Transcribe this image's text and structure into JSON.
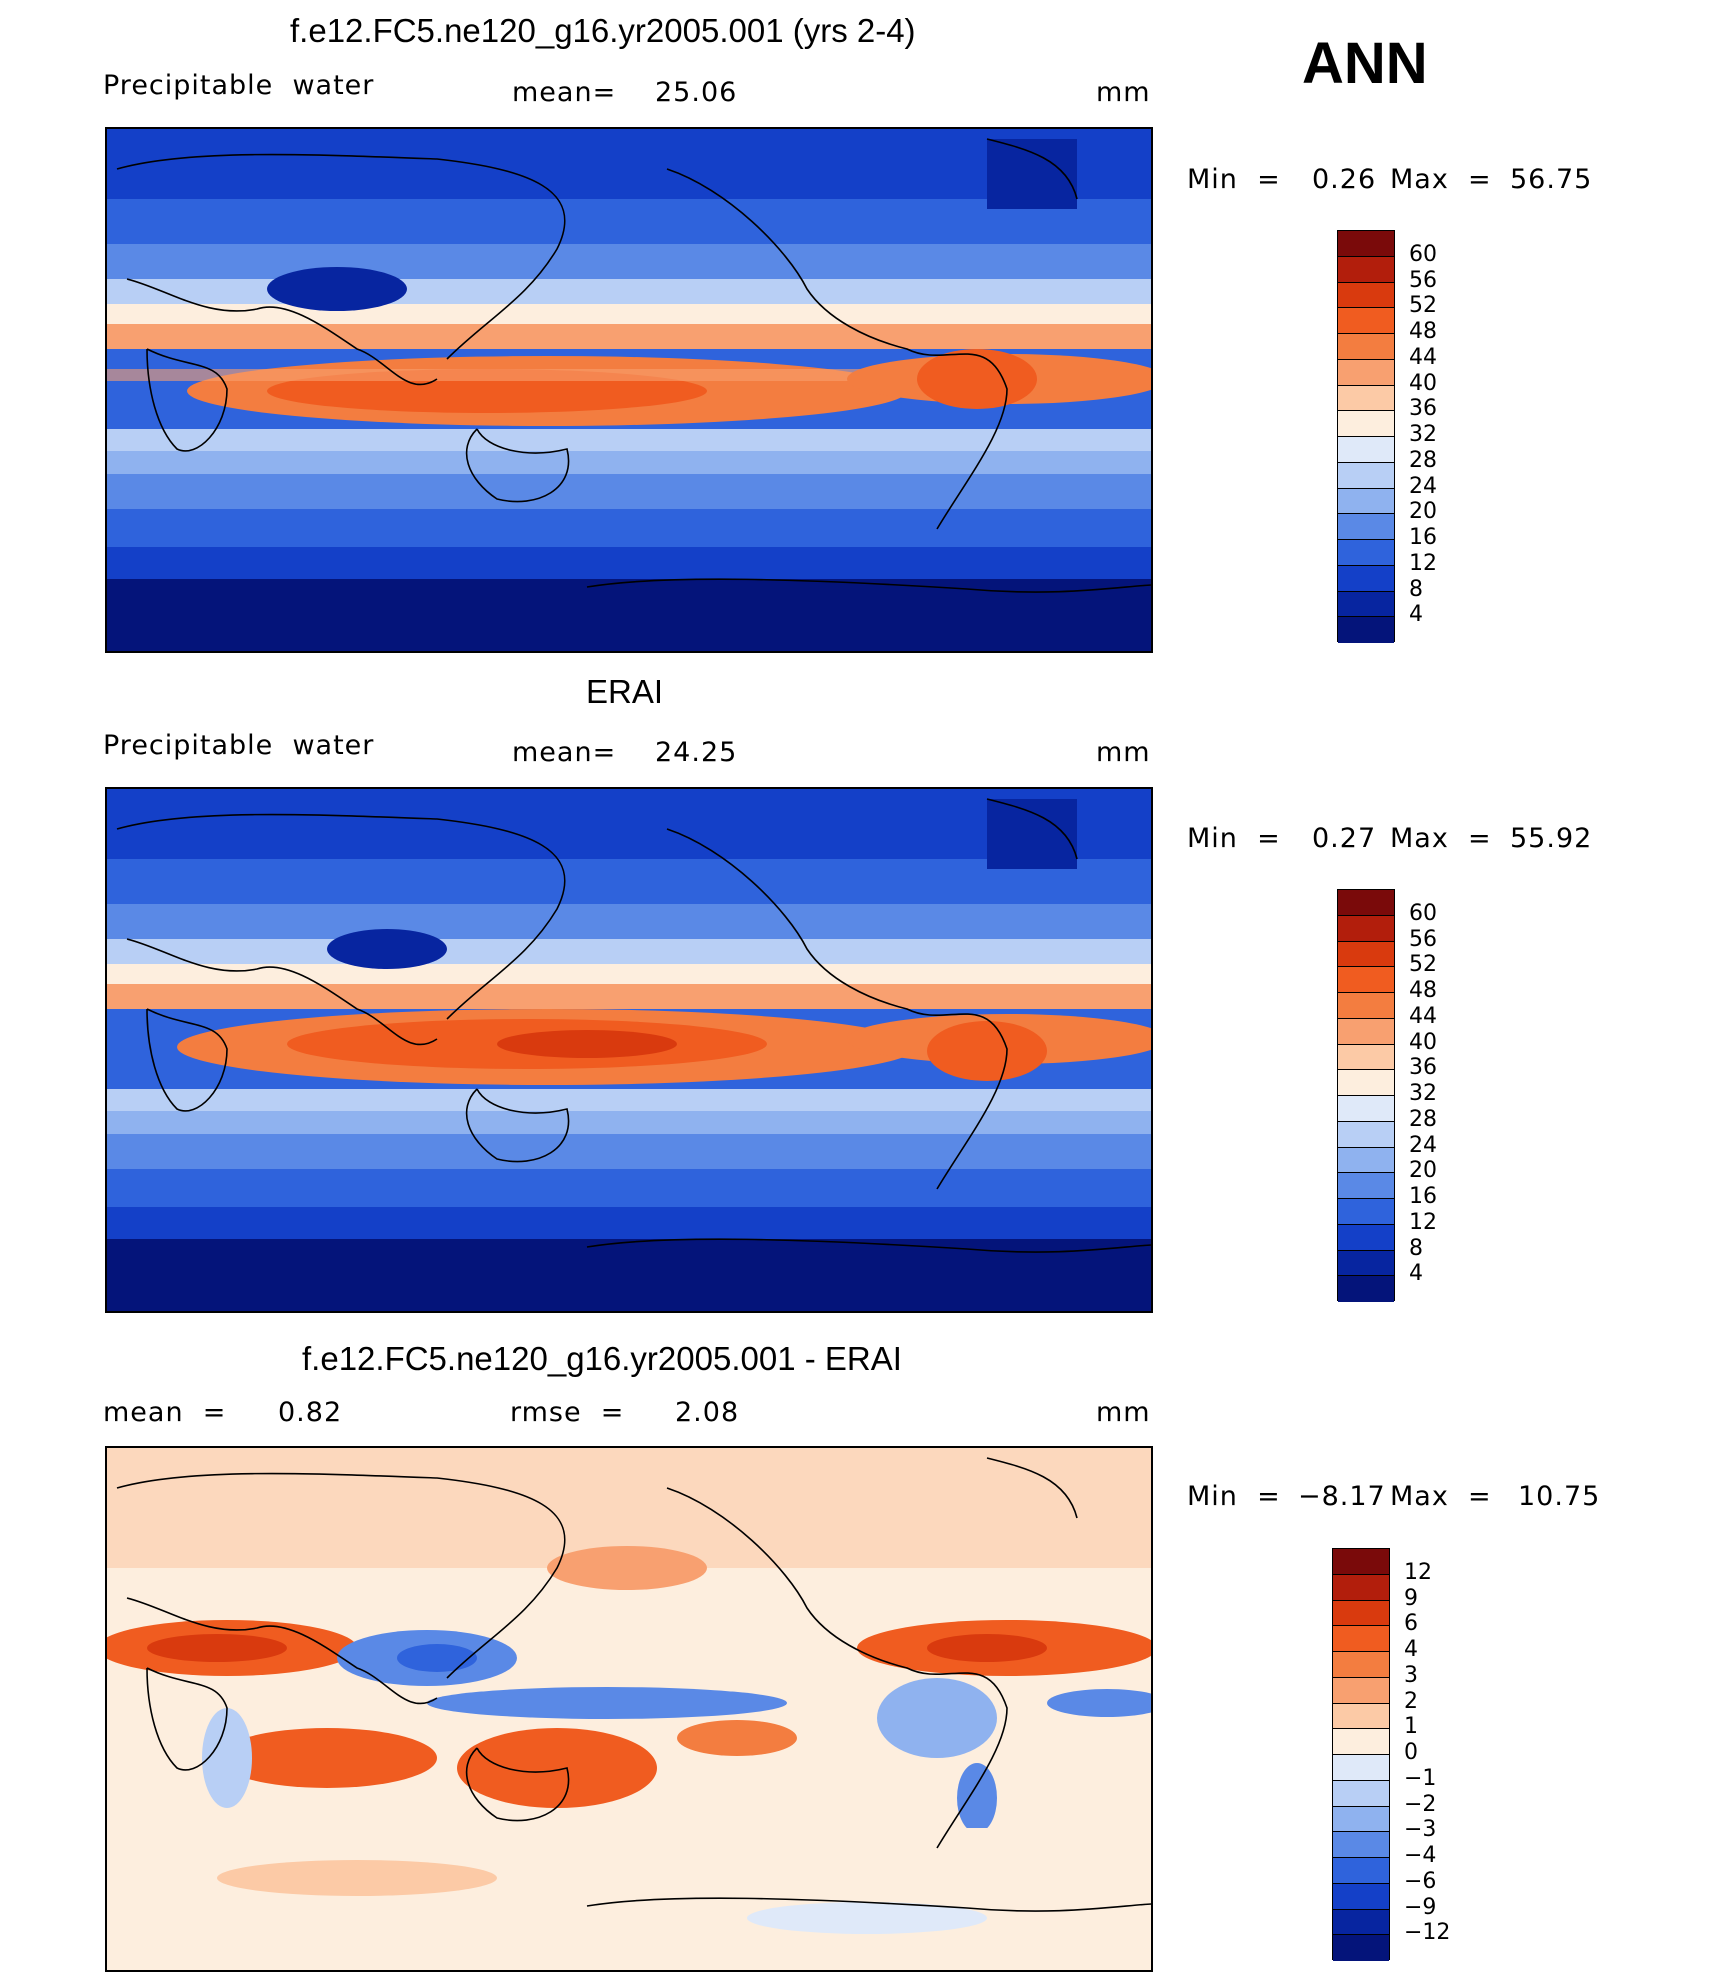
{
  "figure_label": "ANN",
  "panels": [
    {
      "title": "f.e12.FC5.ne120_g16.yr2005.001 (yrs 2-4)",
      "left_label": "Precipitable  water",
      "mid_key": "mean=",
      "mid_value": "25.06",
      "unit": "mm",
      "min_label": "Min  =",
      "min_value": "0.26",
      "max_label": "Max  =",
      "max_value": "56.75",
      "colorbar": {
        "levels": [
          "60",
          "56",
          "52",
          "48",
          "44",
          "40",
          "36",
          "32",
          "28",
          "24",
          "20",
          "16",
          "12",
          "8",
          "4"
        ],
        "colors": [
          "#7a0a0a",
          "#b21e0c",
          "#d93a0e",
          "#f05c20",
          "#f37d40",
          "#f8a070",
          "#fccaa6",
          "#fdeede",
          "#dfe9f9",
          "#b8cff5",
          "#8fb2ef",
          "#5a89e6",
          "#2f63dc",
          "#1440c8",
          "#0725a0",
          "#04147a"
        ]
      }
    },
    {
      "title": "ERAI",
      "left_label": "Precipitable  water",
      "mid_key": "mean=",
      "mid_value": "24.25",
      "unit": "mm",
      "min_label": "Min  =",
      "min_value": "0.27",
      "max_label": "Max  =",
      "max_value": "55.92",
      "colorbar": {
        "levels": [
          "60",
          "56",
          "52",
          "48",
          "44",
          "40",
          "36",
          "32",
          "28",
          "24",
          "20",
          "16",
          "12",
          "8",
          "4"
        ],
        "colors": [
          "#7a0a0a",
          "#b21e0c",
          "#d93a0e",
          "#f05c20",
          "#f37d40",
          "#f8a070",
          "#fccaa6",
          "#fdeede",
          "#dfe9f9",
          "#b8cff5",
          "#8fb2ef",
          "#5a89e6",
          "#2f63dc",
          "#1440c8",
          "#0725a0",
          "#04147a"
        ]
      }
    },
    {
      "title": "f.e12.FC5.ne120_g16.yr2005.001 - ERAI",
      "left_label": "mean  =",
      "left_value": "0.82",
      "mid_key": "rmse  =",
      "mid_value": "2.08",
      "unit": "mm",
      "min_label": "Min  =",
      "min_value": "−8.17",
      "max_label": "Max  =",
      "max_value": "10.75",
      "colorbar": {
        "levels": [
          "12",
          "9",
          "6",
          "4",
          "3",
          "2",
          "1",
          "0",
          "−1",
          "−2",
          "−3",
          "−4",
          "−6",
          "−9",
          "−12"
        ],
        "colors": [
          "#7a0a0a",
          "#b21e0c",
          "#d93a0e",
          "#f05c20",
          "#f37d40",
          "#f8a070",
          "#fccaa6",
          "#fdeede",
          "#dfe9f9",
          "#b8cff5",
          "#8fb2ef",
          "#5a89e6",
          "#2f63dc",
          "#1440c8",
          "#0725a0",
          "#04147a"
        ]
      }
    }
  ]
}
